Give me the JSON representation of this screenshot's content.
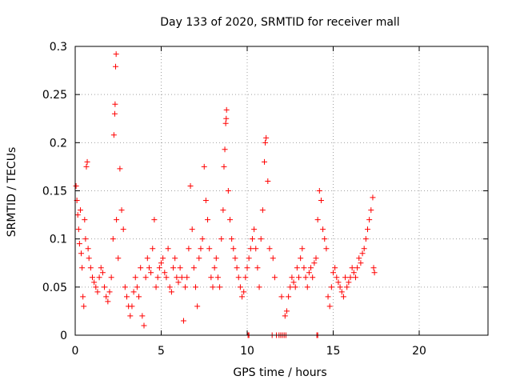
{
  "chart_data": {
    "type": "scatter",
    "title": "Day 133 of 2020, SRMTID for receiver mall",
    "xlabel": "GPS time / hours",
    "ylabel": "SRMTID / TECUs",
    "xlim": [
      0,
      24
    ],
    "ylim": [
      0,
      0.3
    ],
    "xticks": [
      0,
      5,
      10,
      15,
      20
    ],
    "xtick_labels": [
      "0",
      "5",
      "10",
      "15",
      "20"
    ],
    "yticks": [
      0,
      0.05,
      0.1,
      0.15,
      0.2,
      0.25,
      0.3
    ],
    "ytick_labels": [
      "0",
      "0.05",
      "0.1",
      "0.15",
      "0.2",
      "0.25",
      "0.3"
    ],
    "grid": true,
    "marker": "+",
    "series_color": "#ff0000",
    "series": [
      {
        "name": "SRMTID",
        "points": [
          [
            0.05,
            0.155
          ],
          [
            0.1,
            0.14
          ],
          [
            0.15,
            0.125
          ],
          [
            0.2,
            0.11
          ],
          [
            0.25,
            0.095
          ],
          [
            0.3,
            0.13
          ],
          [
            0.35,
            0.085
          ],
          [
            0.4,
            0.07
          ],
          [
            0.45,
            0.04
          ],
          [
            0.5,
            0.03
          ],
          [
            0.55,
            0.12
          ],
          [
            0.6,
            0.1
          ],
          [
            0.65,
            0.175
          ],
          [
            0.7,
            0.18
          ],
          [
            0.75,
            0.09
          ],
          [
            0.8,
            0.08
          ],
          [
            0.9,
            0.07
          ],
          [
            1.0,
            0.06
          ],
          [
            1.1,
            0.055
          ],
          [
            1.2,
            0.05
          ],
          [
            1.3,
            0.045
          ],
          [
            1.4,
            0.06
          ],
          [
            1.5,
            0.07
          ],
          [
            1.6,
            0.065
          ],
          [
            1.7,
            0.05
          ],
          [
            1.8,
            0.04
          ],
          [
            1.9,
            0.035
          ],
          [
            2.0,
            0.045
          ],
          [
            2.1,
            0.06
          ],
          [
            2.2,
            0.1
          ],
          [
            2.25,
            0.208
          ],
          [
            2.3,
            0.23
          ],
          [
            2.32,
            0.24
          ],
          [
            2.35,
            0.279
          ],
          [
            2.38,
            0.292
          ],
          [
            2.4,
            0.12
          ],
          [
            2.5,
            0.08
          ],
          [
            2.6,
            0.173
          ],
          [
            2.7,
            0.13
          ],
          [
            2.8,
            0.11
          ],
          [
            2.9,
            0.05
          ],
          [
            3.0,
            0.04
          ],
          [
            3.1,
            0.03
          ],
          [
            3.2,
            0.02
          ],
          [
            3.3,
            0.03
          ],
          [
            3.4,
            0.045
          ],
          [
            3.5,
            0.06
          ],
          [
            3.6,
            0.05
          ],
          [
            3.7,
            0.04
          ],
          [
            3.8,
            0.07
          ],
          [
            3.9,
            0.02
          ],
          [
            4.0,
            0.01
          ],
          [
            4.1,
            0.06
          ],
          [
            4.2,
            0.08
          ],
          [
            4.3,
            0.07
          ],
          [
            4.4,
            0.065
          ],
          [
            4.5,
            0.09
          ],
          [
            4.6,
            0.12
          ],
          [
            4.7,
            0.05
          ],
          [
            4.8,
            0.06
          ],
          [
            4.9,
            0.07
          ],
          [
            5.0,
            0.075
          ],
          [
            5.1,
            0.08
          ],
          [
            5.2,
            0.065
          ],
          [
            5.3,
            0.06
          ],
          [
            5.4,
            0.09
          ],
          [
            5.5,
            0.05
          ],
          [
            5.6,
            0.045
          ],
          [
            5.7,
            0.07
          ],
          [
            5.8,
            0.08
          ],
          [
            5.9,
            0.06
          ],
          [
            6.0,
            0.055
          ],
          [
            6.1,
            0.07
          ],
          [
            6.2,
            0.06
          ],
          [
            6.3,
            0.015
          ],
          [
            6.4,
            0.05
          ],
          [
            6.5,
            0.06
          ],
          [
            6.6,
            0.09
          ],
          [
            6.7,
            0.155
          ],
          [
            6.8,
            0.11
          ],
          [
            6.9,
            0.07
          ],
          [
            7.0,
            0.05
          ],
          [
            7.1,
            0.03
          ],
          [
            7.2,
            0.08
          ],
          [
            7.3,
            0.09
          ],
          [
            7.4,
            0.1
          ],
          [
            7.5,
            0.175
          ],
          [
            7.6,
            0.14
          ],
          [
            7.7,
            0.12
          ],
          [
            7.8,
            0.09
          ],
          [
            7.9,
            0.06
          ],
          [
            8.0,
            0.05
          ],
          [
            8.1,
            0.07
          ],
          [
            8.2,
            0.08
          ],
          [
            8.3,
            0.06
          ],
          [
            8.4,
            0.05
          ],
          [
            8.5,
            0.1
          ],
          [
            8.6,
            0.13
          ],
          [
            8.65,
            0.175
          ],
          [
            8.7,
            0.193
          ],
          [
            8.75,
            0.22
          ],
          [
            8.78,
            0.225
          ],
          [
            8.8,
            0.234
          ],
          [
            8.9,
            0.15
          ],
          [
            9.0,
            0.12
          ],
          [
            9.1,
            0.1
          ],
          [
            9.2,
            0.09
          ],
          [
            9.3,
            0.08
          ],
          [
            9.4,
            0.07
          ],
          [
            9.5,
            0.06
          ],
          [
            9.6,
            0.05
          ],
          [
            9.7,
            0.04
          ],
          [
            9.8,
            0.045
          ],
          [
            9.9,
            0.06
          ],
          [
            10.0,
            0.07
          ],
          [
            10.1,
            0.08
          ],
          [
            10.2,
            0.09
          ],
          [
            10.3,
            0.1
          ],
          [
            10.4,
            0.11
          ],
          [
            10.5,
            0.09
          ],
          [
            10.6,
            0.07
          ],
          [
            10.7,
            0.05
          ],
          [
            10.8,
            0.1
          ],
          [
            10.9,
            0.13
          ],
          [
            11.0,
            0.18
          ],
          [
            11.05,
            0.2
          ],
          [
            11.1,
            0.205
          ],
          [
            11.2,
            0.16
          ],
          [
            11.3,
            0.09
          ],
          [
            11.5,
            0.08
          ],
          [
            11.6,
            0.06
          ],
          [
            12.0,
            0.04
          ],
          [
            12.2,
            0.02
          ],
          [
            12.3,
            0.025
          ],
          [
            12.4,
            0.04
          ],
          [
            12.5,
            0.05
          ],
          [
            12.6,
            0.06
          ],
          [
            12.7,
            0.055
          ],
          [
            12.8,
            0.05
          ],
          [
            12.9,
            0.07
          ],
          [
            13.0,
            0.06
          ],
          [
            13.1,
            0.08
          ],
          [
            13.2,
            0.09
          ],
          [
            13.3,
            0.07
          ],
          [
            13.4,
            0.06
          ],
          [
            13.5,
            0.05
          ],
          [
            13.6,
            0.065
          ],
          [
            13.7,
            0.07
          ],
          [
            13.8,
            0.06
          ],
          [
            13.9,
            0.075
          ],
          [
            14.0,
            0.08
          ],
          [
            14.1,
            0.12
          ],
          [
            14.2,
            0.15
          ],
          [
            14.3,
            0.14
          ],
          [
            14.4,
            0.11
          ],
          [
            14.5,
            0.1
          ],
          [
            14.6,
            0.09
          ],
          [
            14.7,
            0.04
          ],
          [
            14.8,
            0.03
          ],
          [
            14.9,
            0.05
          ],
          [
            15.0,
            0.065
          ],
          [
            15.1,
            0.07
          ],
          [
            15.2,
            0.06
          ],
          [
            15.3,
            0.055
          ],
          [
            15.4,
            0.05
          ],
          [
            15.5,
            0.045
          ],
          [
            15.6,
            0.04
          ],
          [
            15.7,
            0.06
          ],
          [
            15.8,
            0.05
          ],
          [
            15.9,
            0.055
          ],
          [
            16.0,
            0.06
          ],
          [
            16.1,
            0.07
          ],
          [
            16.2,
            0.065
          ],
          [
            16.3,
            0.06
          ],
          [
            16.4,
            0.07
          ],
          [
            16.5,
            0.08
          ],
          [
            16.6,
            0.075
          ],
          [
            16.7,
            0.085
          ],
          [
            16.8,
            0.09
          ],
          [
            16.9,
            0.1
          ],
          [
            17.0,
            0.11
          ],
          [
            17.1,
            0.12
          ],
          [
            17.2,
            0.13
          ],
          [
            17.3,
            0.143
          ],
          [
            17.35,
            0.07
          ],
          [
            17.4,
            0.065
          ],
          [
            10.05,
            0
          ],
          [
            10.1,
            0
          ],
          [
            11.45,
            0
          ],
          [
            11.7,
            0
          ],
          [
            11.85,
            0
          ],
          [
            11.95,
            0
          ],
          [
            12.05,
            0
          ],
          [
            12.15,
            0
          ],
          [
            12.25,
            0
          ],
          [
            14.05,
            0
          ],
          [
            14.1,
            0
          ]
        ]
      }
    ]
  }
}
